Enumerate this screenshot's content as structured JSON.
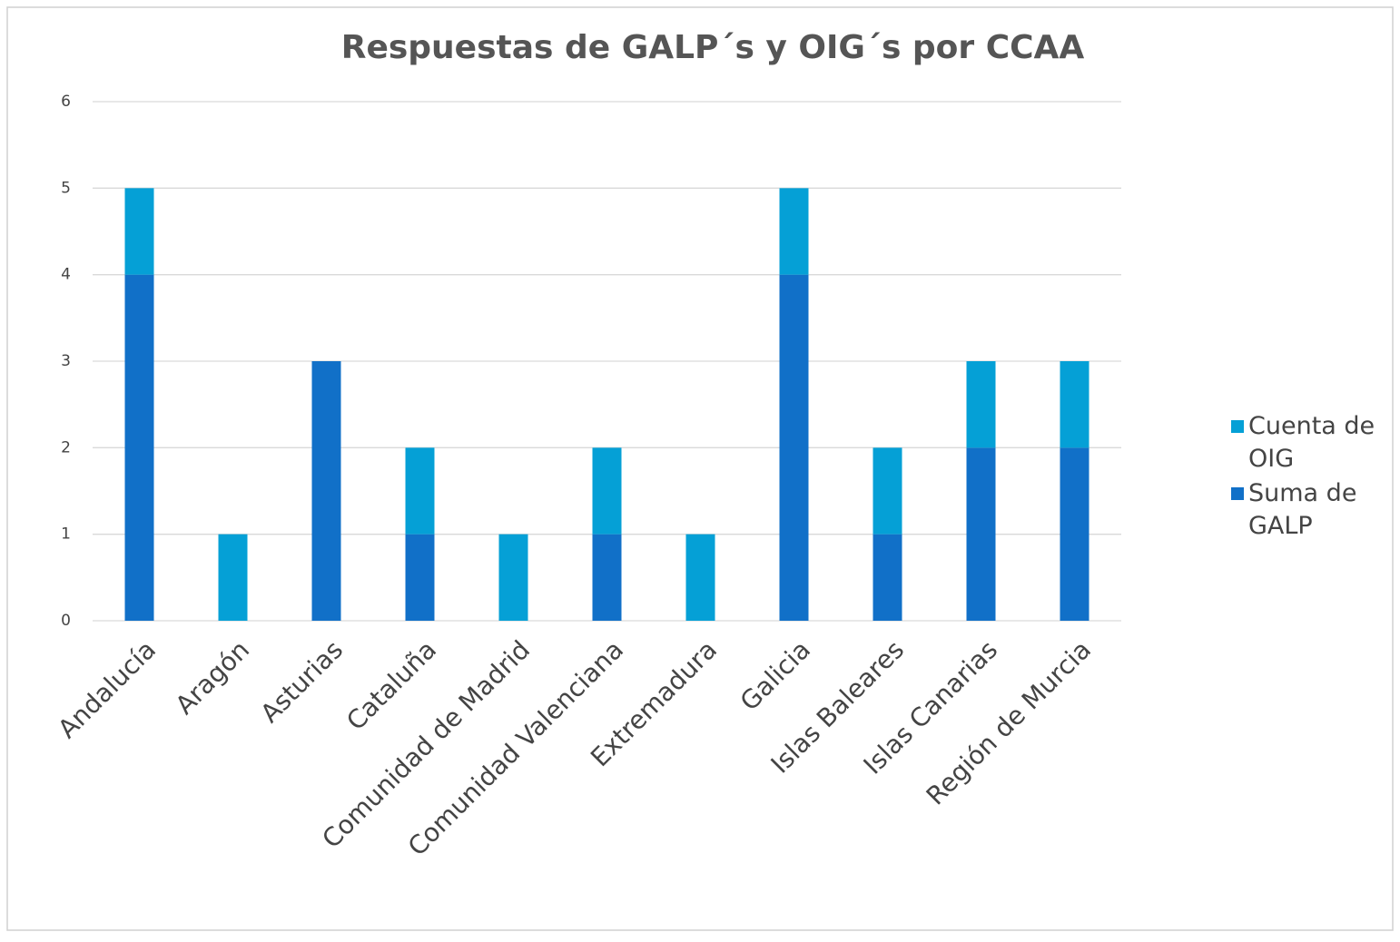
{
  "chart_data": {
    "type": "stacked_bar",
    "title": "Respuestas de GALP´s y OIG´s por CCAA",
    "categories": [
      "Andalucía",
      "Aragón",
      "Asturias",
      "Cataluña",
      "Comunidad de Madrid",
      "Comunidad Valenciana",
      "Extremadura",
      "Galicia",
      "Islas Baleares",
      "Islas Canarias",
      "Región de Murcia"
    ],
    "series": [
      {
        "name": "Cuenta de OIG",
        "color": "#05a0d6",
        "values": [
          1,
          1,
          0,
          1,
          1,
          1,
          1,
          1,
          1,
          1,
          1
        ]
      },
      {
        "name": "Suma de GALP",
        "color": "#1170c8",
        "values": [
          4,
          0,
          3,
          1,
          0,
          1,
          0,
          4,
          1,
          2,
          2
        ]
      }
    ],
    "ylim": [
      0,
      6
    ],
    "yticks": [
      0,
      1,
      2,
      3,
      4,
      5,
      6
    ],
    "grid": true,
    "legend": "right"
  }
}
